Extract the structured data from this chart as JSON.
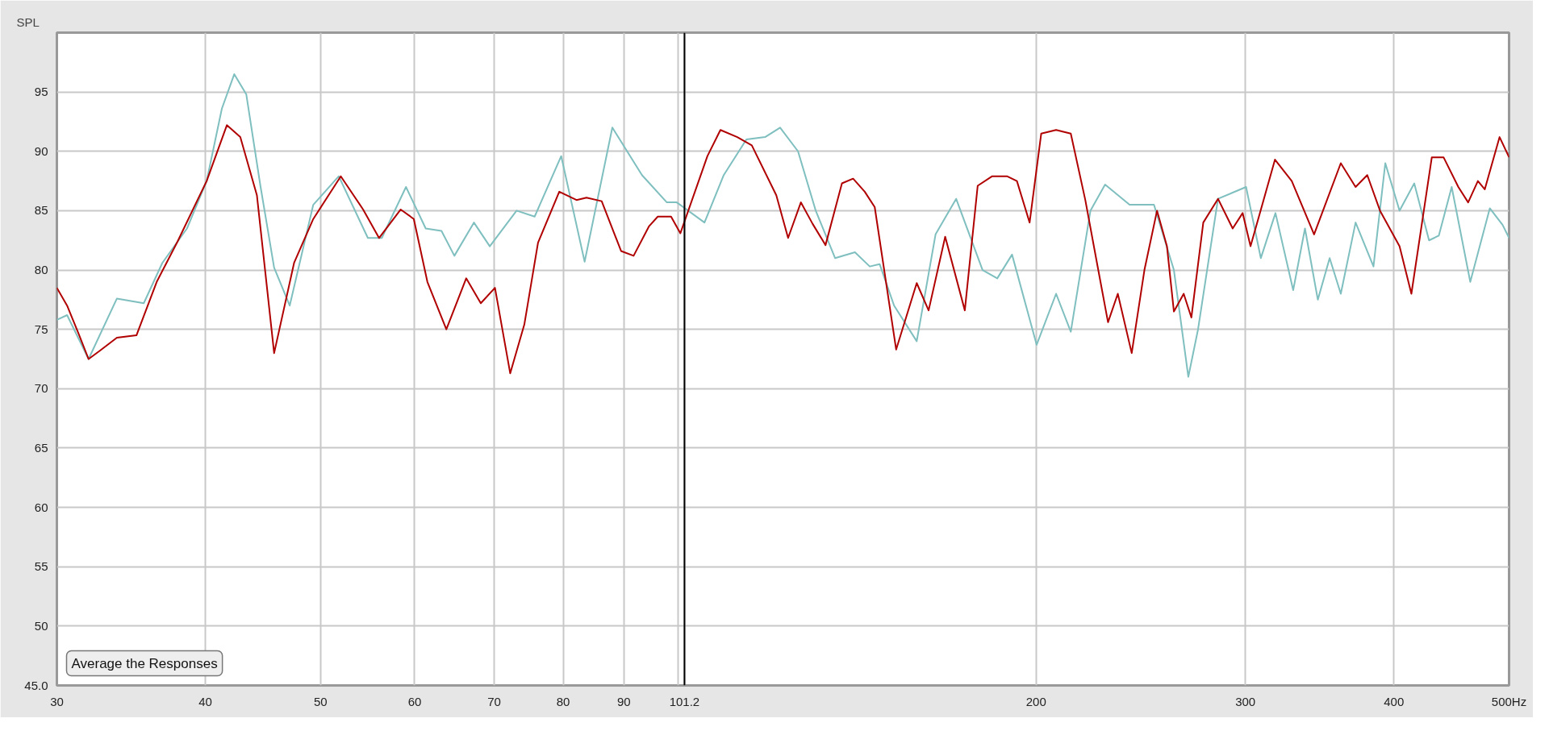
{
  "chart_data": {
    "type": "line",
    "ylabel": "SPL",
    "log": "x",
    "grid": true,
    "line_style": "solid",
    "marker": "none",
    "xlim": [
      30,
      500
    ],
    "ylim": [
      45,
      100
    ],
    "xticks": [
      30,
      40,
      50,
      60,
      70,
      80,
      90,
      {
        "value": 100,
        "label": null
      },
      200,
      300,
      400,
      {
        "value": 500,
        "label": "500Hz"
      }
    ],
    "yticks": [
      {
        "value": 45,
        "label": "45.0"
      },
      50,
      55,
      60,
      65,
      70,
      75,
      80,
      85,
      90,
      95
    ],
    "ref_lines": [
      {
        "axis": "x",
        "value": 101.2,
        "label": "101.2",
        "color": "#000000",
        "line_style": "solid"
      }
    ],
    "annotations": [
      "Average the Responses"
    ],
    "series": [
      {
        "color": "#7fbfbf",
        "x": [
          30,
          30.6,
          31.9,
          33.7,
          35.5,
          36.8,
          38.6,
          40.1,
          41.3,
          42.3,
          43.3,
          44.5,
          45.7,
          47.1,
          49.3,
          51.8,
          54.8,
          56.3,
          59.0,
          61.3,
          63.2,
          64.8,
          67.3,
          69.4,
          73.1,
          75.7,
          79.7,
          83.4,
          88.0,
          93.2,
          97.8,
          99.7,
          105.2,
          109.2,
          114.1,
          118.3,
          121.8,
          126.1,
          130.5,
          135.5,
          140.8,
          144.9,
          147.7,
          151.9,
          158.7,
          164.6,
          171.3,
          180.3,
          185.5,
          190.9,
          200.2,
          207.9,
          213.9,
          222.2,
          228.6,
          239.7,
          251.3,
          261.2,
          268.6,
          273.7,
          284.5,
          300.4,
          309.1,
          318.0,
          329.1,
          336.7,
          345.2,
          353.2,
          360.9,
          371.4,
          384.5,
          393.4,
          404.4,
          416.1,
          428.2,
          436.4,
          447.4,
          463.8,
          481.7,
          493.8,
          500
        ],
        "values": [
          75.8,
          76.2,
          72.5,
          77.6,
          77.2,
          80.6,
          83.5,
          87.5,
          93.6,
          96.5,
          94.8,
          87.1,
          80.2,
          77,
          85.5,
          87.9,
          82.7,
          82.7,
          87,
          83.5,
          83.3,
          81.2,
          84,
          82,
          85,
          84.5,
          89.6,
          80.7,
          92,
          88,
          85.7,
          85.7,
          84,
          88,
          91,
          91.2,
          92,
          90,
          85,
          81,
          81.5,
          80.3,
          80.5,
          77,
          74,
          83,
          86,
          80,
          79.3,
          81.3,
          73.7,
          78,
          74.8,
          85,
          87.2,
          85.5,
          85.5,
          80,
          71,
          75,
          86,
          87,
          81,
          84.8,
          78.3,
          83.5,
          77.5,
          81,
          78,
          84,
          80.3,
          89,
          85,
          87.3,
          82.5,
          82.9,
          87,
          79,
          85.2,
          83.8,
          82.7
        ]
      },
      {
        "color": "#b00000",
        "x": [
          30,
          30.6,
          31.3,
          31.9,
          32.6,
          33.7,
          35.0,
          36.4,
          37.9,
          40.1,
          41.7,
          42.8,
          44.2,
          45.7,
          47.5,
          49.3,
          52.0,
          54.3,
          56.0,
          58.4,
          59.9,
          61.5,
          63.8,
          66.3,
          68.2,
          70.1,
          72.2,
          74.2,
          76.2,
          79.4,
          82.1,
          83.7,
          86.2,
          89.5,
          91.7,
          94.5,
          96.1,
          98.6,
          100.4,
          105.8,
          108.5,
          112.1,
          115.3,
          120.9,
          123.7,
          126.8,
          129.7,
          133.0,
          137.3,
          140.3,
          143.5,
          146.3,
          152.5,
          158.7,
          162.4,
          167.7,
          174.2,
          178.6,
          183.7,
          189,
          192.7,
          197.5,
          202,
          207.9,
          213.9,
          220,
          225.6,
          229.9,
          234.3,
          240.7,
          246.7,
          252.8,
          257.7,
          261.2,
          266.2,
          270.2,
          276.5,
          284.5,
          292.7,
          298.4,
          303,
          317.7,
          328.2,
          342.7,
          360.9,
          371.4,
          379.9,
          389.4,
          404.4,
          413.8,
          430.5,
          440.4,
          453.2,
          461.9,
          470.7,
          477,
          490.9,
          500
        ],
        "values": [
          78.5,
          77,
          74.6,
          72.5,
          73.2,
          74.3,
          74.5,
          79,
          82.4,
          87.5,
          92.2,
          91.2,
          86.3,
          73,
          80.6,
          84.3,
          87.9,
          85.1,
          82.7,
          85.1,
          84.3,
          79,
          75,
          79.3,
          77.2,
          78.5,
          71.3,
          75.4,
          82.3,
          86.6,
          85.9,
          86.1,
          85.8,
          81.6,
          81.2,
          83.7,
          84.5,
          84.5,
          83.1,
          89.6,
          91.8,
          91.2,
          90.5,
          86.3,
          82.7,
          85.7,
          83.9,
          82.1,
          87.3,
          87.7,
          86.6,
          85.3,
          73.3,
          78.9,
          76.6,
          82.8,
          76.6,
          87.1,
          87.9,
          87.9,
          87.5,
          84,
          91.5,
          91.8,
          91.5,
          85.9,
          80,
          75.6,
          78,
          73,
          80,
          85,
          82,
          76.5,
          78,
          76,
          84,
          86,
          83.5,
          84.8,
          82,
          89.3,
          87.5,
          83,
          89,
          87,
          88,
          85,
          82,
          78,
          89.5,
          89.5,
          87,
          85.7,
          87.5,
          86.8,
          91.2,
          89.5
        ]
      }
    ]
  }
}
